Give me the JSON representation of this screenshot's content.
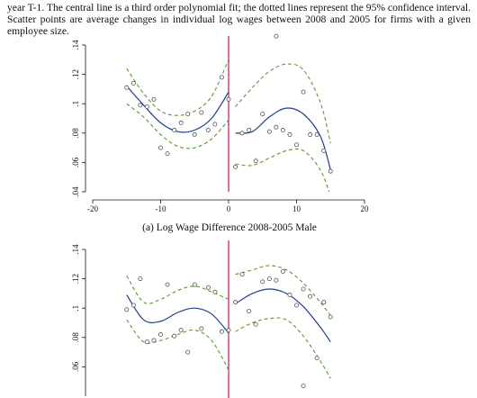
{
  "caption": {
    "text": "year T-1. The central line is a third order polynomial fit; the dotted lines represent the 95% confidence interval. Scatter points are average changes in individual log wages between 2008 and 2005 for firms with a given employee size."
  },
  "colors": {
    "fit": "#1f3e8f",
    "ci": "#5a9a2e",
    "points": "#555555",
    "threshold": "#d0145a",
    "axis": "#111111"
  },
  "chart_data": [
    {
      "type": "scatter",
      "title": "(a) Log Wage Difference 2008-2005 Male",
      "xlabel": "",
      "ylabel": "",
      "xlim": [
        -20,
        20
      ],
      "ylim": [
        0.04,
        0.14
      ],
      "xticks": [
        "-20",
        "-10",
        "0",
        "10",
        "20"
      ],
      "yticks": [
        ".04",
        ".06",
        ".08",
        ".1",
        ".12",
        ".14"
      ],
      "threshold_x": 0,
      "points": [
        [
          -15,
          0.111
        ],
        [
          -14,
          0.114
        ],
        [
          -13,
          0.099
        ],
        [
          -12,
          0.098
        ],
        [
          -11,
          0.103
        ],
        [
          -10,
          0.07
        ],
        [
          -9,
          0.066
        ],
        [
          -8,
          0.082
        ],
        [
          -7,
          0.087
        ],
        [
          -6,
          0.093
        ],
        [
          -5,
          0.079
        ],
        [
          -4,
          0.094
        ],
        [
          -3,
          0.082
        ],
        [
          -2,
          0.086
        ],
        [
          -1,
          0.118
        ],
        [
          0,
          0.103
        ],
        [
          1,
          0.057
        ],
        [
          2,
          0.08
        ],
        [
          3,
          0.082
        ],
        [
          4,
          0.061
        ],
        [
          5,
          0.093
        ],
        [
          6,
          0.081
        ],
        [
          7,
          0.084
        ],
        [
          8,
          0.082
        ],
        [
          9,
          0.079
        ],
        [
          10,
          0.072
        ],
        [
          11,
          0.108
        ],
        [
          12,
          0.079
        ],
        [
          13,
          0.079
        ],
        [
          14,
          0.068
        ],
        [
          15,
          0.054
        ],
        [
          7,
          0.146
        ]
      ],
      "fit_left": [
        [
          -15,
          0.112
        ],
        [
          -12.5,
          0.099
        ],
        [
          -10,
          0.087
        ],
        [
          -7.5,
          0.081
        ],
        [
          -5,
          0.082
        ],
        [
          -2.5,
          0.09
        ],
        [
          0,
          0.108
        ]
      ],
      "ci_upper_left": [
        [
          -15,
          0.124
        ],
        [
          -12.5,
          0.107
        ],
        [
          -10,
          0.095
        ],
        [
          -7.5,
          0.092
        ],
        [
          -5,
          0.095
        ],
        [
          -2.5,
          0.105
        ],
        [
          0,
          0.13
        ]
      ],
      "ci_lower_left": [
        [
          -15,
          0.1
        ],
        [
          -12.5,
          0.091
        ],
        [
          -10,
          0.079
        ],
        [
          -7.5,
          0.071
        ],
        [
          -5,
          0.07
        ],
        [
          -2.5,
          0.076
        ],
        [
          0,
          0.089
        ]
      ],
      "fit_right": [
        [
          1,
          0.08
        ],
        [
          3.5,
          0.081
        ],
        [
          6,
          0.091
        ],
        [
          8.5,
          0.097
        ],
        [
          11,
          0.093
        ],
        [
          13.5,
          0.078
        ],
        [
          15,
          0.055
        ]
      ],
      "ci_upper_right": [
        [
          1,
          0.098
        ],
        [
          3.5,
          0.111
        ],
        [
          6,
          0.122
        ],
        [
          8.5,
          0.127
        ],
        [
          11,
          0.123
        ],
        [
          13.5,
          0.101
        ],
        [
          15,
          0.073
        ]
      ],
      "ci_lower_right": [
        [
          1,
          0.059
        ],
        [
          3.5,
          0.058
        ],
        [
          6,
          0.063
        ],
        [
          8.5,
          0.068
        ],
        [
          11,
          0.068
        ],
        [
          13.5,
          0.055
        ],
        [
          15,
          0.037
        ]
      ]
    },
    {
      "type": "scatter",
      "title": "",
      "xlabel": "",
      "ylabel": "",
      "ylim": [
        0.04,
        0.14
      ],
      "yticks": [
        ".06",
        ".08",
        ".1",
        ".12",
        ".14"
      ],
      "threshold_x": 0,
      "points": [
        [
          -15,
          0.099
        ],
        [
          -14,
          0.102
        ],
        [
          -13,
          0.12
        ],
        [
          -12,
          0.077
        ],
        [
          -11,
          0.078
        ],
        [
          -10,
          0.082
        ],
        [
          -9,
          0.116
        ],
        [
          -8,
          0.081
        ],
        [
          -7,
          0.085
        ],
        [
          -6,
          0.07
        ],
        [
          -5,
          0.116
        ],
        [
          -4,
          0.086
        ],
        [
          -3,
          0.114
        ],
        [
          -2,
          0.111
        ],
        [
          -1,
          0.084
        ],
        [
          0,
          0.085
        ],
        [
          1,
          0.104
        ],
        [
          2,
          0.123
        ],
        [
          3,
          0.098
        ],
        [
          4,
          0.089
        ],
        [
          5,
          0.118
        ],
        [
          6,
          0.12
        ],
        [
          7,
          0.119
        ],
        [
          8,
          0.125
        ],
        [
          9,
          0.109
        ],
        [
          10,
          0.102
        ],
        [
          11,
          0.113
        ],
        [
          12,
          0.108
        ],
        [
          13,
          0.066
        ],
        [
          14,
          0.104
        ],
        [
          15,
          0.094
        ],
        [
          11,
          0.047
        ]
      ],
      "fit_left": [
        [
          -15,
          0.109
        ],
        [
          -12.5,
          0.092
        ],
        [
          -10,
          0.091
        ],
        [
          -7.5,
          0.097
        ],
        [
          -5,
          0.1
        ],
        [
          -2.5,
          0.096
        ],
        [
          0,
          0.083
        ]
      ],
      "ci_upper_left": [
        [
          -15,
          0.122
        ],
        [
          -12.5,
          0.104
        ],
        [
          -10,
          0.106
        ],
        [
          -7.5,
          0.112
        ],
        [
          -5,
          0.115
        ],
        [
          -2.5,
          0.111
        ],
        [
          0,
          0.106
        ]
      ],
      "ci_lower_left": [
        [
          -15,
          0.092
        ],
        [
          -12.5,
          0.077
        ],
        [
          -10,
          0.078
        ],
        [
          -7.5,
          0.082
        ],
        [
          -5,
          0.085
        ],
        [
          -2.5,
          0.078
        ],
        [
          0,
          0.058
        ]
      ],
      "fit_right": [
        [
          1,
          0.103
        ],
        [
          3.5,
          0.11
        ],
        [
          6,
          0.113
        ],
        [
          8.5,
          0.11
        ],
        [
          11,
          0.101
        ],
        [
          13.5,
          0.087
        ],
        [
          15,
          0.077
        ]
      ],
      "ci_upper_right": [
        [
          1,
          0.123
        ],
        [
          3.5,
          0.126
        ],
        [
          6,
          0.129
        ],
        [
          8.5,
          0.126
        ],
        [
          11,
          0.117
        ],
        [
          13.5,
          0.104
        ],
        [
          15,
          0.095
        ]
      ],
      "ci_lower_right": [
        [
          1,
          0.084
        ],
        [
          3.5,
          0.09
        ],
        [
          6,
          0.093
        ],
        [
          8.5,
          0.092
        ],
        [
          11,
          0.081
        ],
        [
          13.5,
          0.064
        ],
        [
          15,
          0.052
        ]
      ]
    }
  ]
}
